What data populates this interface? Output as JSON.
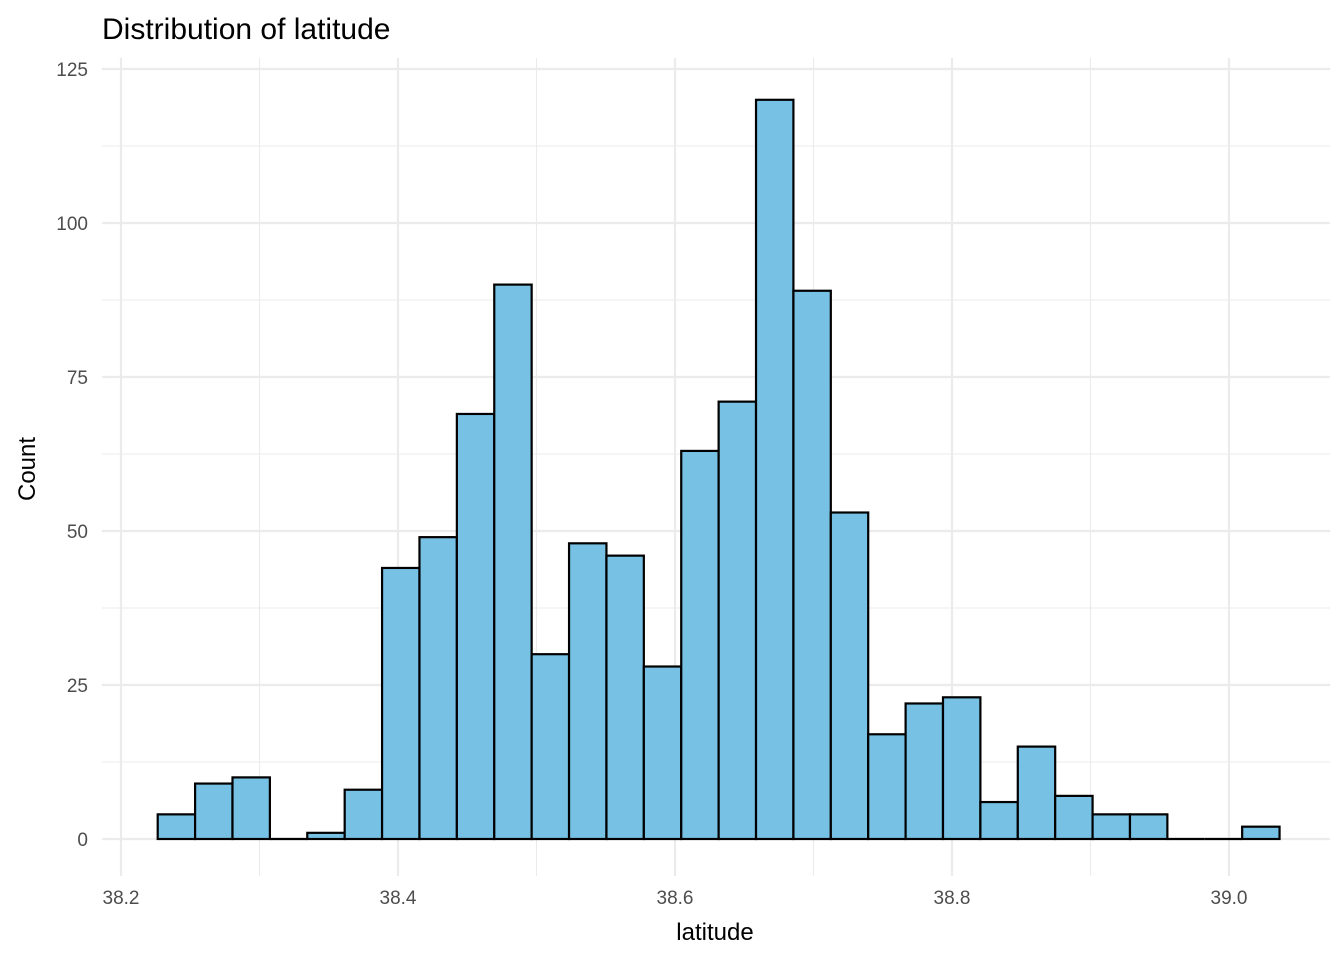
{
  "chart_data": {
    "type": "bar",
    "subtype": "histogram",
    "title": "Distribution of latitude",
    "xlabel": "latitude",
    "ylabel": "Count",
    "xlim": [
      38.2,
      39.05
    ],
    "ylim": [
      0,
      125
    ],
    "x_ticks": [
      "38.2",
      "38.4",
      "38.6",
      "38.8",
      "39.0"
    ],
    "y_ticks": [
      "0",
      "25",
      "50",
      "75",
      "100",
      "125"
    ],
    "grid": true,
    "bar_color": "#77c1e5",
    "bar_outline": "#000000",
    "bins": [
      {
        "start": 38.2265,
        "end": 38.2535,
        "count": 4
      },
      {
        "start": 38.2535,
        "end": 38.2805,
        "count": 9
      },
      {
        "start": 38.2805,
        "end": 38.3075,
        "count": 10
      },
      {
        "start": 38.3075,
        "end": 38.3345,
        "count": 0
      },
      {
        "start": 38.3345,
        "end": 38.3615,
        "count": 1
      },
      {
        "start": 38.3615,
        "end": 38.3885,
        "count": 8
      },
      {
        "start": 38.3885,
        "end": 38.4155,
        "count": 44
      },
      {
        "start": 38.4155,
        "end": 38.4425,
        "count": 49
      },
      {
        "start": 38.4425,
        "end": 38.4695,
        "count": 69
      },
      {
        "start": 38.4695,
        "end": 38.4965,
        "count": 90
      },
      {
        "start": 38.4965,
        "end": 38.5235,
        "count": 30
      },
      {
        "start": 38.5235,
        "end": 38.5505,
        "count": 48
      },
      {
        "start": 38.5505,
        "end": 38.5775,
        "count": 46
      },
      {
        "start": 38.5775,
        "end": 38.6045,
        "count": 28
      },
      {
        "start": 38.6045,
        "end": 38.6315,
        "count": 63
      },
      {
        "start": 38.6315,
        "end": 38.6585,
        "count": 71
      },
      {
        "start": 38.6585,
        "end": 38.6855,
        "count": 120
      },
      {
        "start": 38.6855,
        "end": 38.7125,
        "count": 89
      },
      {
        "start": 38.7125,
        "end": 38.7395,
        "count": 53
      },
      {
        "start": 38.7395,
        "end": 38.7665,
        "count": 17
      },
      {
        "start": 38.7665,
        "end": 38.7935,
        "count": 22
      },
      {
        "start": 38.7935,
        "end": 38.8205,
        "count": 23
      },
      {
        "start": 38.8205,
        "end": 38.8475,
        "count": 6
      },
      {
        "start": 38.8475,
        "end": 38.8745,
        "count": 15
      },
      {
        "start": 38.8745,
        "end": 38.9015,
        "count": 7
      },
      {
        "start": 38.9015,
        "end": 38.9285,
        "count": 4
      },
      {
        "start": 38.9285,
        "end": 38.9555,
        "count": 4
      },
      {
        "start": 38.9555,
        "end": 38.9825,
        "count": 0
      },
      {
        "start": 38.9825,
        "end": 39.0095,
        "count": 0
      },
      {
        "start": 39.0095,
        "end": 39.0365,
        "count": 2
      }
    ]
  }
}
